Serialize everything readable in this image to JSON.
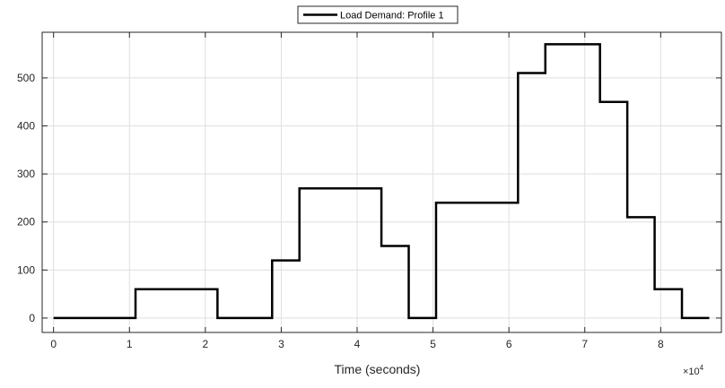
{
  "chart_data": {
    "type": "line",
    "step": true,
    "xlabel": "Time (seconds)",
    "ylabel": "",
    "x_exponent_label": "×10",
    "x_exponent_power": "4",
    "xlim": [
      -0.15,
      8.8
    ],
    "ylim": [
      -30,
      595
    ],
    "x_ticks": [
      0,
      1,
      2,
      3,
      4,
      5,
      6,
      7,
      8
    ],
    "y_ticks": [
      0,
      100,
      200,
      300,
      400,
      500
    ],
    "grid": true,
    "legend_position": "top-center",
    "colors": {
      "line": "#000000",
      "grid": "#dfdfdf",
      "axes": "#262626",
      "background": "#ffffff"
    },
    "series": [
      {
        "name": "Load Demand: Profile 1",
        "x": [
          0,
          1.08,
          1.08,
          2.16,
          2.16,
          2.88,
          2.88,
          3.24,
          3.24,
          4.32,
          4.32,
          4.68,
          4.68,
          5.04,
          5.04,
          6.12,
          6.12,
          6.48,
          6.48,
          7.2,
          7.2,
          7.56,
          7.56,
          7.92,
          7.92,
          8.28,
          8.28,
          8.64
        ],
        "y": [
          0,
          0,
          60,
          60,
          0,
          0,
          120,
          120,
          270,
          270,
          150,
          150,
          0,
          0,
          240,
          240,
          510,
          510,
          570,
          570,
          450,
          450,
          210,
          210,
          60,
          60,
          0,
          0
        ]
      }
    ]
  }
}
